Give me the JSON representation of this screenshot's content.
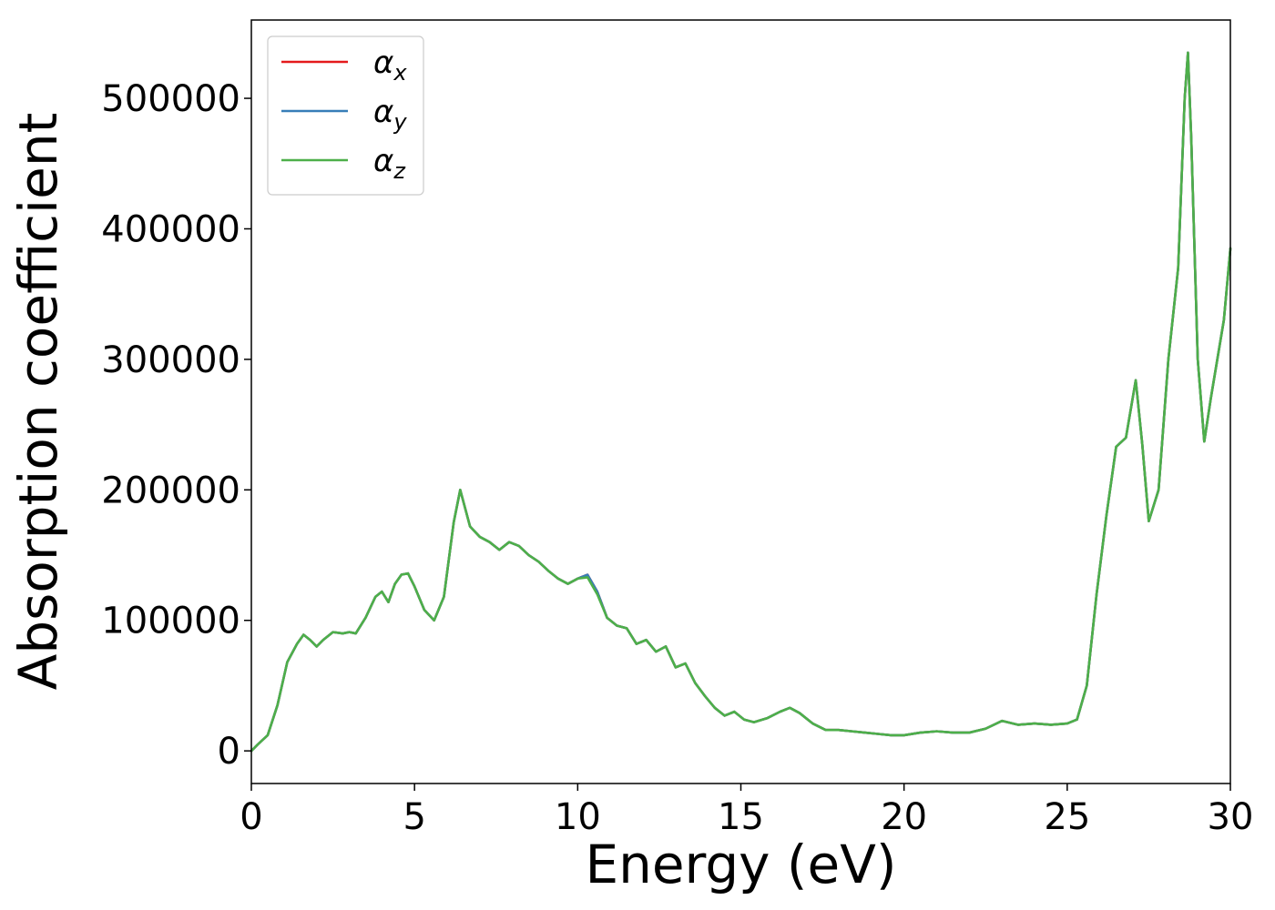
{
  "chart_data": {
    "type": "line",
    "title": "",
    "xlabel": "Energy (eV)",
    "ylabel": "Absorption coefficient",
    "xlim": [
      0,
      30
    ],
    "ylim": [
      -25000,
      560000
    ],
    "xticks": [
      "0",
      "5",
      "10",
      "15",
      "20",
      "25",
      "30"
    ],
    "yticks": [
      "0",
      "100000",
      "200000",
      "300000",
      "400000",
      "500000"
    ],
    "grid": false,
    "legend_position": "top-left",
    "x": [
      0,
      0.2,
      0.5,
      0.8,
      1.1,
      1.4,
      1.6,
      1.8,
      2.0,
      2.2,
      2.5,
      2.8,
      3.0,
      3.2,
      3.5,
      3.8,
      4.0,
      4.2,
      4.4,
      4.6,
      4.8,
      5.0,
      5.3,
      5.6,
      5.9,
      6.2,
      6.4,
      6.7,
      7.0,
      7.3,
      7.6,
      7.9,
      8.2,
      8.5,
      8.8,
      9.1,
      9.4,
      9.7,
      10.0,
      10.3,
      10.6,
      10.9,
      11.2,
      11.5,
      11.8,
      12.1,
      12.4,
      12.7,
      13.0,
      13.3,
      13.6,
      13.9,
      14.2,
      14.5,
      14.8,
      15.1,
      15.4,
      15.8,
      16.2,
      16.5,
      16.8,
      17.2,
      17.6,
      18.0,
      18.4,
      18.8,
      19.2,
      19.6,
      20.0,
      20.5,
      21.0,
      21.5,
      22.0,
      22.5,
      23.0,
      23.5,
      24.0,
      24.5,
      25.0,
      25.3,
      25.6,
      25.9,
      26.2,
      26.5,
      26.8,
      27.1,
      27.3,
      27.5,
      27.8,
      28.1,
      28.4,
      28.6,
      28.7,
      28.8,
      29.0,
      29.2,
      29.4,
      29.6,
      29.8,
      30.0
    ],
    "series": [
      {
        "name": "αx",
        "color": "#e41a1c",
        "values": [
          0,
          5000,
          12000,
          35000,
          68000,
          82000,
          89000,
          85000,
          80000,
          85000,
          91000,
          90000,
          91000,
          90000,
          102000,
          118000,
          122000,
          114000,
          128000,
          135000,
          136000,
          126000,
          108000,
          100000,
          118000,
          175000,
          200000,
          172000,
          164000,
          160000,
          154000,
          160000,
          157000,
          150000,
          145000,
          138000,
          132000,
          128000,
          132000,
          135000,
          122000,
          102000,
          96000,
          94000,
          82000,
          85000,
          76000,
          80000,
          64000,
          67000,
          52000,
          42000,
          33000,
          27000,
          30000,
          24000,
          22000,
          25000,
          30000,
          33000,
          29000,
          21000,
          16000,
          16000,
          15000,
          14000,
          13000,
          12000,
          12000,
          14000,
          15000,
          14000,
          14000,
          17000,
          23000,
          20000,
          21000,
          20000,
          21000,
          24000,
          50000,
          120000,
          180000,
          233000,
          240000,
          284000,
          235000,
          176000,
          200000,
          300000,
          370000,
          500000,
          535000,
          470000,
          300000,
          237000,
          270000,
          300000,
          330000,
          385000
        ]
      },
      {
        "name": "αy",
        "color": "#377eb8",
        "values": [
          0,
          5000,
          12000,
          35000,
          68000,
          82000,
          89000,
          85000,
          80000,
          85000,
          91000,
          90000,
          91000,
          90000,
          102000,
          118000,
          122000,
          114000,
          128000,
          135000,
          136000,
          126000,
          108000,
          100000,
          118000,
          175000,
          200000,
          172000,
          164000,
          160000,
          154000,
          160000,
          157000,
          150000,
          145000,
          138000,
          132000,
          128000,
          132000,
          135000,
          122000,
          102000,
          96000,
          94000,
          82000,
          85000,
          76000,
          80000,
          64000,
          67000,
          52000,
          42000,
          33000,
          27000,
          30000,
          24000,
          22000,
          25000,
          30000,
          33000,
          29000,
          21000,
          16000,
          16000,
          15000,
          14000,
          13000,
          12000,
          12000,
          14000,
          15000,
          14000,
          14000,
          17000,
          23000,
          20000,
          21000,
          20000,
          21000,
          24000,
          50000,
          120000,
          180000,
          233000,
          240000,
          284000,
          235000,
          176000,
          200000,
          300000,
          370000,
          500000,
          535000,
          470000,
          300000,
          237000,
          270000,
          300000,
          330000,
          385000
        ]
      },
      {
        "name": "αz",
        "color": "#4daf4a",
        "values": [
          0,
          5000,
          12000,
          35000,
          68000,
          82000,
          89000,
          85000,
          80000,
          85000,
          91000,
          90000,
          91000,
          90000,
          102000,
          118000,
          122000,
          114000,
          128000,
          135000,
          136000,
          126000,
          108000,
          100000,
          118000,
          175000,
          200000,
          172000,
          164000,
          160000,
          154000,
          160000,
          157000,
          150000,
          145000,
          138000,
          132000,
          128000,
          132000,
          133000,
          120000,
          102000,
          96000,
          94000,
          82000,
          85000,
          76000,
          80000,
          64000,
          67000,
          52000,
          42000,
          33000,
          27000,
          30000,
          24000,
          22000,
          25000,
          30000,
          33000,
          29000,
          21000,
          16000,
          16000,
          15000,
          14000,
          13000,
          12000,
          12000,
          14000,
          15000,
          14000,
          14000,
          17000,
          23000,
          20000,
          21000,
          20000,
          21000,
          24000,
          50000,
          120000,
          180000,
          233000,
          240000,
          284000,
          235000,
          176000,
          200000,
          300000,
          370000,
          500000,
          535000,
          470000,
          300000,
          237000,
          270000,
          300000,
          330000,
          385000
        ]
      }
    ],
    "legend": [
      {
        "base": "α",
        "sub": "x",
        "color": "#e41a1c"
      },
      {
        "base": "α",
        "sub": "y",
        "color": "#377eb8"
      },
      {
        "base": "α",
        "sub": "z",
        "color": "#4daf4a"
      }
    ]
  }
}
